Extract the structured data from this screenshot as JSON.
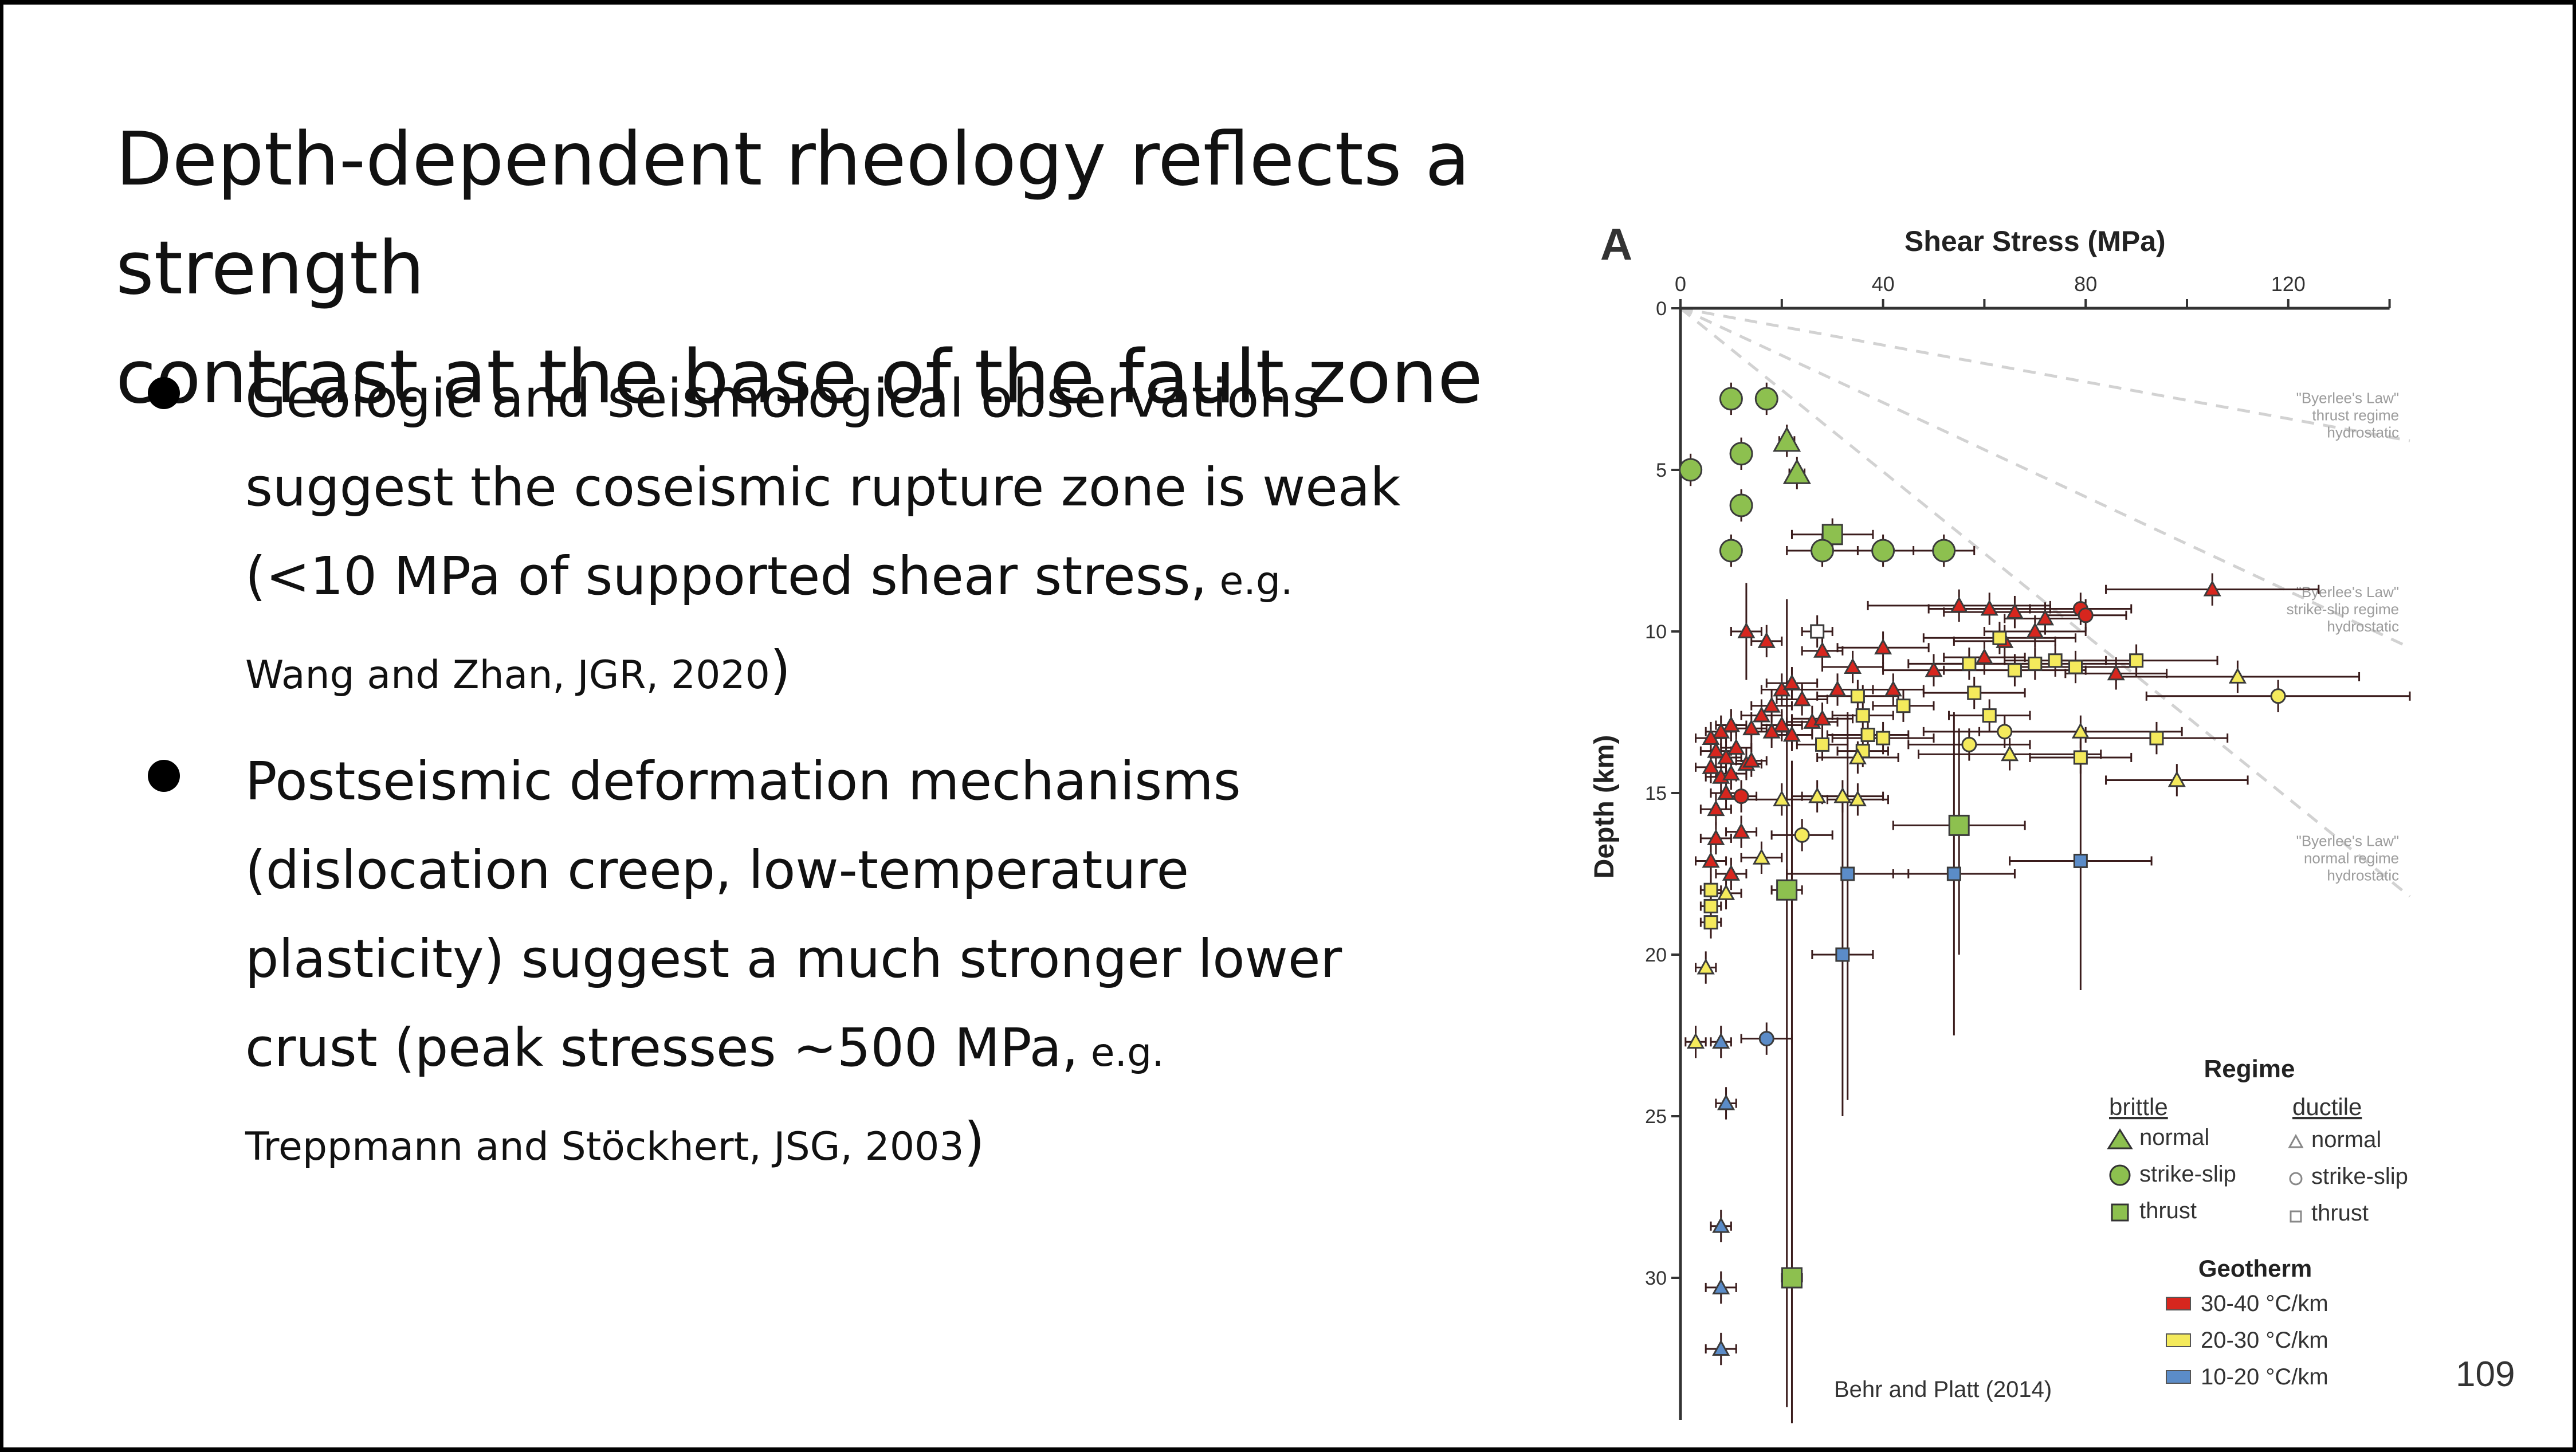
{
  "slide": {
    "title_line1": "Depth-dependent rheology reflects a strength",
    "title_line2": "contrast at the base of the fault zone",
    "bullets": [
      {
        "line1": "Geologic and seismological observations",
        "line2": "suggest the coseismic rupture zone is weak",
        "line3_main": "(<10 MPa of supported shear stress,",
        "line3_small": " e.g.",
        "line4_small": "Wang and Zhan, JGR, 2020",
        "line4_close": ")"
      },
      {
        "line1": "Postseismic deformation mechanisms",
        "line2": "(dislocation creep, low-temperature",
        "line3": "plasticity) suggest a much stronger lower",
        "line4_main": "crust (peak stresses ~500 MPa,",
        "line4_small": " e.g.",
        "line5_small": "Treppmann and Stöckhert, JSG, 2003",
        "line5_close": ")"
      }
    ],
    "page_number": "109"
  },
  "chart_data": {
    "type": "scatter",
    "panel_label": "A",
    "xlabel": "Shear Stress (MPa)",
    "ylabel": "Depth (km)",
    "xlim": [
      0,
      140
    ],
    "ylim": [
      34.5,
      0
    ],
    "x_axis_position": "top",
    "y_inverted": true,
    "xticks": [
      0,
      40,
      80,
      120
    ],
    "yticks": [
      0,
      5,
      10,
      15,
      20,
      25,
      30
    ],
    "grid": false,
    "colors": {
      "30-40": "#d7261e",
      "20-30": "#f4ea5c",
      "10-20": "#5b8cc8",
      "brittle_green": "#8dc04f",
      "errorbar": "#3a1c1c",
      "byerlee_line": "#d2d2d2",
      "legend_ductile": "#888888"
    },
    "byerlee_lines": [
      {
        "label_lines": [
          "\"Byerlee's Law\"",
          "thrust regime",
          "hydrostatic"
        ],
        "x": [
          0,
          144
        ],
        "y": [
          0,
          4.1
        ],
        "label_xy": [
          143,
          4.0
        ]
      },
      {
        "label_lines": [
          "\"Byerlee's Law\"",
          "strike-slip regime",
          "hydrostatic"
        ],
        "x": [
          0,
          144
        ],
        "y": [
          0,
          10.5
        ],
        "label_xy": [
          143,
          10.0
        ]
      },
      {
        "label_lines": [
          "\"Byerlee's Law\"",
          "normal regime",
          "hydrostatic"
        ],
        "x": [
          0,
          144
        ],
        "y": [
          0,
          18.2
        ],
        "label_xy": [
          143,
          17.7
        ]
      }
    ],
    "points": [
      {
        "x": 10,
        "y": 2.8,
        "s": "c",
        "k": "g"
      },
      {
        "x": 17,
        "y": 2.8,
        "s": "c",
        "k": "g"
      },
      {
        "x": 21,
        "y": 4.1,
        "s": "t",
        "k": "g"
      },
      {
        "x": 12,
        "y": 4.5,
        "s": "c",
        "k": "g"
      },
      {
        "x": 2,
        "y": 5.0,
        "s": "c",
        "k": "g"
      },
      {
        "x": 23,
        "y": 5.1,
        "s": "t",
        "k": "g"
      },
      {
        "x": 12,
        "y": 6.1,
        "s": "c",
        "k": "g"
      },
      {
        "x": 30,
        "y": 7.0,
        "s": "s",
        "k": "g",
        "xe": [
          8,
          8
        ]
      },
      {
        "x": 10,
        "y": 7.5,
        "s": "c",
        "k": "g"
      },
      {
        "x": 28,
        "y": 7.5,
        "s": "c",
        "k": "g",
        "xe": [
          7,
          7
        ]
      },
      {
        "x": 40,
        "y": 7.5,
        "s": "c",
        "k": "g",
        "xe": [
          10,
          10
        ]
      },
      {
        "x": 52,
        "y": 7.5,
        "s": "c",
        "k": "g",
        "xe": [
          6,
          6
        ]
      },
      {
        "x": 13,
        "y": 10.0,
        "s": "t",
        "k": "r",
        "xe": [
          3,
          3
        ],
        "ye": [
          1.5,
          1.5
        ]
      },
      {
        "x": 27,
        "y": 10.0,
        "s": "s",
        "k": "o",
        "xe": [
          3,
          3
        ]
      },
      {
        "x": 28,
        "y": 10.6,
        "s": "t",
        "k": "r",
        "xe": [
          4,
          4
        ]
      },
      {
        "x": 34,
        "y": 11.1,
        "s": "t",
        "k": "r",
        "xe": [
          6,
          6
        ]
      },
      {
        "x": 31,
        "y": 11.8,
        "s": "t",
        "k": "r",
        "xe": [
          7,
          7
        ]
      },
      {
        "x": 40,
        "y": 10.5,
        "s": "t",
        "k": "r",
        "xe": [
          9,
          9
        ]
      },
      {
        "x": 42,
        "y": 11.8,
        "s": "t",
        "k": "r",
        "xe": [
          6,
          6
        ]
      },
      {
        "x": 50,
        "y": 11.2,
        "s": "t",
        "k": "r",
        "xe": [
          10,
          10
        ]
      },
      {
        "x": 55,
        "y": 9.2,
        "s": "t",
        "k": "r",
        "xe": [
          18,
          18
        ]
      },
      {
        "x": 61,
        "y": 9.3,
        "s": "t",
        "k": "r",
        "xe": [
          12,
          12
        ]
      },
      {
        "x": 66,
        "y": 9.4,
        "s": "t",
        "k": "r",
        "xe": [
          14,
          14
        ]
      },
      {
        "x": 72,
        "y": 9.6,
        "s": "t",
        "k": "r",
        "xe": [
          8,
          8
        ]
      },
      {
        "x": 79,
        "y": 9.3,
        "s": "c",
        "k": "r",
        "xe": [
          10,
          10
        ]
      },
      {
        "x": 80,
        "y": 9.5,
        "s": "c",
        "k": "r",
        "xe": [
          8,
          8
        ]
      },
      {
        "x": 105,
        "y": 8.7,
        "s": "t",
        "k": "r",
        "xe": [
          21,
          21
        ]
      },
      {
        "x": 64,
        "y": 10.3,
        "s": "t",
        "k": "r",
        "xe": [
          10,
          10
        ]
      },
      {
        "x": 70,
        "y": 10.0,
        "s": "t",
        "k": "r",
        "xe": [
          10,
          10
        ]
      },
      {
        "x": 60,
        "y": 10.8,
        "s": "t",
        "k": "r",
        "xe": [
          8,
          8
        ]
      },
      {
        "x": 86,
        "y": 11.3,
        "s": "t",
        "k": "r",
        "xe": [
          10,
          10
        ]
      },
      {
        "x": 57,
        "y": 11.0,
        "s": "s",
        "k": "y",
        "xe": [
          12,
          12
        ]
      },
      {
        "x": 63,
        "y": 10.2,
        "s": "s",
        "k": "y",
        "xe": [
          15,
          15
        ]
      },
      {
        "x": 70,
        "y": 11.0,
        "s": "s",
        "k": "y",
        "xe": [
          20,
          20
        ]
      },
      {
        "x": 66,
        "y": 11.2,
        "s": "s",
        "k": "y",
        "xe": [
          14,
          14
        ]
      },
      {
        "x": 74,
        "y": 10.9,
        "s": "s",
        "k": "y",
        "xe": [
          10,
          10
        ]
      },
      {
        "x": 78,
        "y": 11.1,
        "s": "s",
        "k": "y",
        "xe": [
          12,
          12
        ]
      },
      {
        "x": 90,
        "y": 10.9,
        "s": "s",
        "k": "y",
        "xe": [
          16,
          16
        ]
      },
      {
        "x": 58,
        "y": 11.9,
        "s": "s",
        "k": "y",
        "xe": [
          10,
          10
        ]
      },
      {
        "x": 44,
        "y": 12.3,
        "s": "s",
        "k": "y",
        "xe": [
          6,
          6
        ]
      },
      {
        "x": 35,
        "y": 12.0,
        "s": "s",
        "k": "y",
        "xe": [
          8,
          8
        ]
      },
      {
        "x": 36,
        "y": 12.6,
        "s": "s",
        "k": "y",
        "xe": [
          6,
          6
        ]
      },
      {
        "x": 37,
        "y": 13.2,
        "s": "s",
        "k": "y",
        "xe": [
          8,
          8
        ]
      },
      {
        "x": 36,
        "y": 13.7,
        "s": "s",
        "k": "y",
        "xe": [
          5,
          5
        ]
      },
      {
        "x": 40,
        "y": 13.3,
        "s": "s",
        "k": "y",
        "xe": [
          10,
          10
        ]
      },
      {
        "x": 28,
        "y": 13.5,
        "s": "s",
        "k": "y",
        "xe": [
          5,
          5
        ]
      },
      {
        "x": 61,
        "y": 12.6,
        "s": "s",
        "k": "y",
        "xe": [
          8,
          8
        ]
      },
      {
        "x": 64,
        "y": 13.1,
        "s": "c",
        "k": "y",
        "xe": [
          16,
          16
        ]
      },
      {
        "x": 57,
        "y": 13.5,
        "s": "c",
        "k": "y",
        "xe": [
          12,
          12
        ]
      },
      {
        "x": 65,
        "y": 13.8,
        "s": "t",
        "k": "y",
        "xe": [
          18,
          18
        ]
      },
      {
        "x": 79,
        "y": 13.1,
        "s": "t",
        "k": "y",
        "xe": [
          20,
          20
        ]
      },
      {
        "x": 79,
        "y": 13.9,
        "s": "s",
        "k": "y",
        "xe": [
          10,
          10
        ]
      },
      {
        "x": 94,
        "y": 13.3,
        "s": "s",
        "k": "y",
        "xe": [
          14,
          14
        ]
      },
      {
        "x": 98,
        "y": 14.6,
        "s": "t",
        "k": "y",
        "xe": [
          14,
          14
        ]
      },
      {
        "x": 110,
        "y": 11.4,
        "s": "t",
        "k": "y",
        "xe": [
          24,
          24
        ]
      },
      {
        "x": 118,
        "y": 12.0,
        "s": "c",
        "k": "y",
        "xe": [
          26,
          26
        ]
      },
      {
        "x": 35,
        "y": 13.9,
        "s": "t",
        "k": "y",
        "xe": [
          8,
          8
        ]
      },
      {
        "x": 20,
        "y": 15.2,
        "s": "t",
        "k": "y",
        "xe": [
          8,
          8
        ]
      },
      {
        "x": 27,
        "y": 15.1,
        "s": "t",
        "k": "y",
        "xe": [
          5,
          5
        ]
      },
      {
        "x": 32,
        "y": 15.1,
        "s": "t",
        "k": "y",
        "xe": [
          8,
          8
        ]
      },
      {
        "x": 35,
        "y": 15.2,
        "s": "t",
        "k": "y",
        "xe": [
          6,
          6
        ]
      },
      {
        "x": 24,
        "y": 16.3,
        "s": "c",
        "k": "y",
        "xe": [
          6,
          6
        ]
      },
      {
        "x": 16,
        "y": 17.0,
        "s": "t",
        "k": "y",
        "xe": [
          4,
          4
        ]
      },
      {
        "x": 6,
        "y": 18.0,
        "s": "s",
        "k": "y",
        "xe": [
          2,
          2
        ]
      },
      {
        "x": 9,
        "y": 18.1,
        "s": "t",
        "k": "y",
        "xe": [
          3,
          3
        ]
      },
      {
        "x": 6,
        "y": 18.5,
        "s": "s",
        "k": "y",
        "xe": [
          2,
          2
        ]
      },
      {
        "x": 6,
        "y": 19.0,
        "s": "s",
        "k": "y",
        "xe": [
          2,
          2
        ]
      },
      {
        "x": 5,
        "y": 20.4,
        "s": "t",
        "k": "y",
        "xe": [
          2,
          2
        ]
      },
      {
        "x": 3,
        "y": 22.7,
        "s": "t",
        "k": "y",
        "xe": [
          2,
          2
        ]
      },
      {
        "x": 17,
        "y": 10.3,
        "s": "t",
        "k": "r",
        "xe": [
          3,
          3
        ]
      },
      {
        "x": 20,
        "y": 11.8,
        "s": "t",
        "k": "r",
        "xe": [
          4,
          4
        ]
      },
      {
        "x": 22,
        "y": 11.6,
        "s": "t",
        "k": "r",
        "xe": [
          5,
          5
        ]
      },
      {
        "x": 24,
        "y": 12.1,
        "s": "t",
        "k": "r",
        "xe": [
          5,
          5
        ]
      },
      {
        "x": 18,
        "y": 12.3,
        "s": "t",
        "k": "r",
        "xe": [
          4,
          4
        ]
      },
      {
        "x": 16,
        "y": 12.6,
        "s": "t",
        "k": "r",
        "xe": [
          4,
          4
        ]
      },
      {
        "x": 20,
        "y": 12.9,
        "s": "t",
        "k": "r",
        "xe": [
          4,
          4
        ]
      },
      {
        "x": 14,
        "y": 13.0,
        "s": "t",
        "k": "r",
        "xe": [
          3,
          3
        ]
      },
      {
        "x": 10,
        "y": 12.9,
        "s": "t",
        "k": "r",
        "xe": [
          3,
          3
        ]
      },
      {
        "x": 8,
        "y": 13.1,
        "s": "t",
        "k": "r",
        "xe": [
          3,
          3
        ]
      },
      {
        "x": 6,
        "y": 13.3,
        "s": "t",
        "k": "r",
        "xe": [
          3,
          3
        ]
      },
      {
        "x": 7,
        "y": 13.7,
        "s": "t",
        "k": "r",
        "xe": [
          3,
          3
        ]
      },
      {
        "x": 9,
        "y": 13.9,
        "s": "t",
        "k": "r",
        "xe": [
          3,
          3
        ]
      },
      {
        "x": 11,
        "y": 13.6,
        "s": "t",
        "k": "r",
        "xe": [
          3,
          3
        ]
      },
      {
        "x": 6,
        "y": 14.2,
        "s": "t",
        "k": "r",
        "xe": [
          3,
          3
        ]
      },
      {
        "x": 8,
        "y": 14.5,
        "s": "t",
        "k": "r",
        "xe": [
          3,
          3
        ]
      },
      {
        "x": 10,
        "y": 14.4,
        "s": "t",
        "k": "r",
        "xe": [
          3,
          3
        ]
      },
      {
        "x": 13,
        "y": 14.1,
        "s": "t",
        "k": "r",
        "xe": [
          3,
          3
        ]
      },
      {
        "x": 9,
        "y": 15.0,
        "s": "t",
        "k": "r",
        "xe": [
          3,
          3
        ]
      },
      {
        "x": 12,
        "y": 15.1,
        "s": "c",
        "k": "r",
        "xe": [
          3,
          3
        ]
      },
      {
        "x": 7,
        "y": 15.5,
        "s": "t",
        "k": "r",
        "xe": [
          3,
          3
        ]
      },
      {
        "x": 12,
        "y": 16.2,
        "s": "t",
        "k": "r",
        "xe": [
          3,
          3
        ]
      },
      {
        "x": 7,
        "y": 16.4,
        "s": "t",
        "k": "r",
        "xe": [
          3,
          3
        ]
      },
      {
        "x": 6,
        "y": 17.1,
        "s": "t",
        "k": "r",
        "xe": [
          3,
          3
        ]
      },
      {
        "x": 10,
        "y": 17.5,
        "s": "t",
        "k": "r",
        "xe": [
          3,
          3
        ]
      },
      {
        "x": 26,
        "y": 12.8,
        "s": "t",
        "k": "r",
        "xe": [
          5,
          5
        ]
      },
      {
        "x": 28,
        "y": 12.7,
        "s": "t",
        "k": "r",
        "xe": [
          6,
          6
        ]
      },
      {
        "x": 18,
        "y": 13.1,
        "s": "t",
        "k": "r",
        "xe": [
          4,
          4
        ]
      },
      {
        "x": 22,
        "y": 13.2,
        "s": "t",
        "k": "r",
        "xe": [
          4,
          4
        ]
      },
      {
        "x": 14,
        "y": 14.0,
        "s": "t",
        "k": "r",
        "xe": [
          3,
          3
        ]
      },
      {
        "x": 21,
        "y": 18.0,
        "s": "s",
        "k": "g",
        "xe": [
          3,
          3
        ],
        "ye": [
          9,
          16
        ]
      },
      {
        "x": 55,
        "y": 16.0,
        "s": "s",
        "k": "g",
        "xe": [
          13,
          13
        ],
        "ye": [
          3,
          4
        ]
      },
      {
        "x": 22,
        "y": 30.0,
        "s": "s",
        "k": "g",
        "xe": [
          2,
          2
        ],
        "ye": [
          16,
          4.5
        ]
      },
      {
        "x": 33,
        "y": 17.5,
        "s": "s",
        "k": "b",
        "xe": [
          12,
          12
        ],
        "ye": [
          5,
          7
        ]
      },
      {
        "x": 54,
        "y": 17.5,
        "s": "s",
        "k": "b",
        "xe": [
          12,
          12
        ],
        "ye": [
          5,
          5
        ]
      },
      {
        "x": 79,
        "y": 17.1,
        "s": "s",
        "k": "b",
        "xe": [
          14,
          14
        ],
        "ye": [
          4,
          4
        ]
      },
      {
        "x": 32,
        "y": 20.0,
        "s": "s",
        "k": "b",
        "xe": [
          6,
          6
        ],
        "ye": [
          5,
          5
        ]
      },
      {
        "x": 17,
        "y": 22.6,
        "s": "c",
        "k": "b",
        "xe": [
          5,
          5
        ]
      },
      {
        "x": 8,
        "y": 22.7,
        "s": "t",
        "k": "b",
        "xe": [
          2,
          2
        ]
      },
      {
        "x": 9,
        "y": 24.6,
        "s": "t",
        "k": "b",
        "xe": [
          2,
          2
        ]
      },
      {
        "x": 8,
        "y": 28.4,
        "s": "t",
        "k": "b",
        "xe": [
          2,
          2
        ]
      },
      {
        "x": 8,
        "y": 30.3,
        "s": "t",
        "k": "b",
        "xe": [
          3,
          3
        ]
      },
      {
        "x": 8,
        "y": 32.2,
        "s": "t",
        "k": "b",
        "xe": [
          3,
          3
        ]
      }
    ],
    "legend": {
      "title": "Regime",
      "brittle_header": "brittle",
      "ductile_header": "ductile",
      "brittle_items": [
        "normal",
        "strike-slip",
        "thrust"
      ],
      "ductile_items": [
        "normal",
        "strike-slip",
        "thrust"
      ],
      "geotherm_title": "Geotherm",
      "geotherm_items": [
        {
          "label": "30-40 °C/km",
          "color": "#d7261e"
        },
        {
          "label": "20-30 °C/km",
          "color": "#f4ea5c"
        },
        {
          "label": "10-20 °C/km",
          "color": "#5b8cc8"
        }
      ],
      "placement": "bottom-right"
    },
    "citation": "Behr and Platt (2014)"
  }
}
